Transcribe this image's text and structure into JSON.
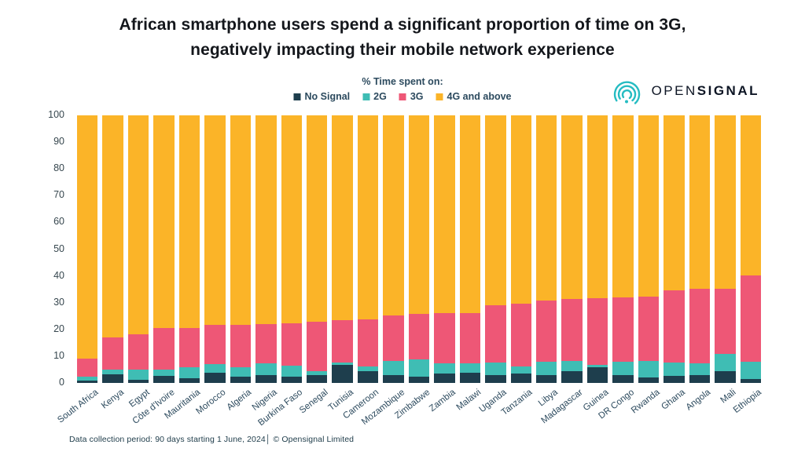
{
  "title": {
    "line1": "African smartphone users spend a significant proportion of time on 3G,",
    "line2": "negatively impacting their mobile network experience"
  },
  "legend": {
    "heading": "% Time spent on:"
  },
  "logo": {
    "open": "OPEN",
    "signal": "SIGNAL"
  },
  "footer": {
    "text": "Data collection period: 90 days starting 1 June, 2024│ © Opensignal Limited"
  },
  "chart_data": {
    "type": "bar",
    "stacked": true,
    "title": "% Time spent on:",
    "xlabel": "",
    "ylabel": "% Time spent",
    "ylim": [
      0,
      100
    ],
    "yticks": [
      0,
      10,
      20,
      30,
      40,
      50,
      60,
      70,
      80,
      90,
      100
    ],
    "grid": false,
    "legend_position": "top-center",
    "categories": [
      "South Africa",
      "Kenya",
      "Egypt",
      "Côte d'Ivoire",
      "Mauritania",
      "Morocco",
      "Algeria",
      "Nigeria",
      "Burkina Faso",
      "Senegal",
      "Tunisia",
      "Cameroon",
      "Mozambique",
      "Zimbabwe",
      "Zambia",
      "Malawi",
      "Uganda",
      "Tanzania",
      "Libya",
      "Madagascar",
      "Guinea",
      "DR Congo",
      "Rwanda",
      "Ghana",
      "Angola",
      "Mali",
      "Ethiopia"
    ],
    "series": [
      {
        "name": "No Signal",
        "color": "#1E3E4D",
        "values": [
          0.8,
          3.2,
          1.2,
          2.6,
          1.9,
          3.9,
          2.4,
          2.9,
          2.3,
          3.0,
          6.7,
          4.3,
          3.0,
          2.4,
          3.4,
          3.7,
          3.0,
          3.4,
          2.9,
          4.4,
          5.8,
          2.8,
          2.2,
          2.6,
          2.9,
          4.5,
          1.5
        ]
      },
      {
        "name": "2G",
        "color": "#3FBDB4",
        "values": [
          1.5,
          1.7,
          3.7,
          2.5,
          4.0,
          3.0,
          3.5,
          4.3,
          4.2,
          1.5,
          0.9,
          1.8,
          5.3,
          6.4,
          3.9,
          3.6,
          4.5,
          2.9,
          4.9,
          3.9,
          1.0,
          5.0,
          6.1,
          4.9,
          4.4,
          6.5,
          6.5
        ]
      },
      {
        "name": "3G",
        "color": "#EE5776",
        "values": [
          6.8,
          12.0,
          13.4,
          15.4,
          14.7,
          14.7,
          15.7,
          14.7,
          15.9,
          18.4,
          16.0,
          17.8,
          17.0,
          17.0,
          18.7,
          18.9,
          21.5,
          23.4,
          22.9,
          23.2,
          24.9,
          24.1,
          23.9,
          27.1,
          27.8,
          24.1,
          32.3
        ]
      },
      {
        "name": "4G and above",
        "color": "#FBB428",
        "values": [
          90.9,
          83.1,
          81.7,
          79.5,
          79.4,
          78.4,
          78.4,
          78.1,
          77.6,
          77.1,
          76.4,
          76.1,
          74.7,
          74.2,
          74.0,
          73.8,
          71.0,
          70.3,
          69.3,
          68.5,
          68.3,
          68.1,
          67.8,
          65.4,
          64.9,
          64.9,
          59.7
        ]
      }
    ]
  }
}
